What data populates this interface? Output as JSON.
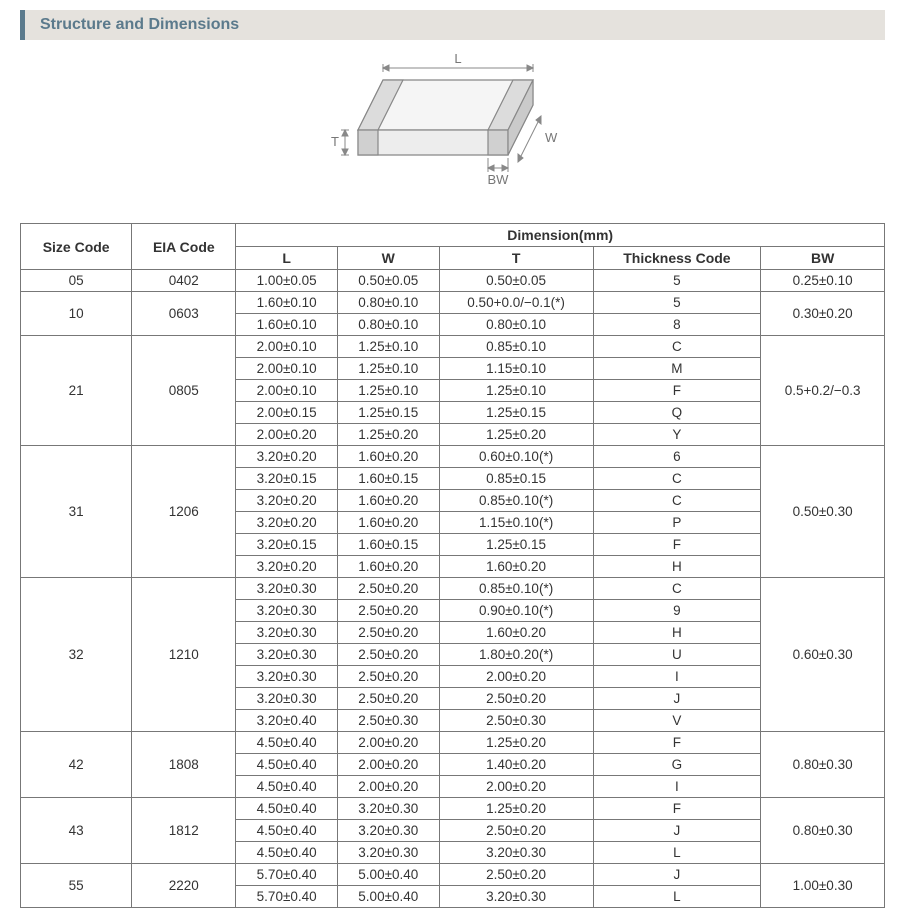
{
  "section_title": "Structure and Dimensions",
  "diagram": {
    "labels": {
      "L": "L",
      "W": "W",
      "T": "T",
      "BW": "BW"
    },
    "stroke": "#888888",
    "fill": "#eeeeee",
    "text_color": "#777777"
  },
  "table": {
    "headers": {
      "size_code": "Size Code",
      "eia_code": "EIA Code",
      "dimension_group": "Dimension(mm)",
      "L": "L",
      "W": "W",
      "T": "T",
      "thickness_code": "Thickness  Code",
      "BW": "BW"
    },
    "groups": [
      {
        "size_code": "05",
        "eia_code": "0402",
        "bw": "0.25±0.10",
        "rows": [
          {
            "L": "1.00±0.05",
            "W": "0.50±0.05",
            "T": "0.50±0.05",
            "tc": "5"
          }
        ]
      },
      {
        "size_code": "10",
        "eia_code": "0603",
        "bw": "0.30±0.20",
        "rows": [
          {
            "L": "1.60±0.10",
            "W": "0.80±0.10",
            "T": "0.50+0.0/−0.1(*)",
            "tc": "5"
          },
          {
            "L": "1.60±0.10",
            "W": "0.80±0.10",
            "T": "0.80±0.10",
            "tc": "8"
          }
        ]
      },
      {
        "size_code": "21",
        "eia_code": "0805",
        "bw": "0.5+0.2/−0.3",
        "rows": [
          {
            "L": "2.00±0.10",
            "W": "1.25±0.10",
            "T": "0.85±0.10",
            "tc": "C"
          },
          {
            "L": "2.00±0.10",
            "W": "1.25±0.10",
            "T": "1.15±0.10",
            "tc": "M"
          },
          {
            "L": "2.00±0.10",
            "W": "1.25±0.10",
            "T": "1.25±0.10",
            "tc": "F"
          },
          {
            "L": "2.00±0.15",
            "W": "1.25±0.15",
            "T": "1.25±0.15",
            "tc": "Q"
          },
          {
            "L": "2.00±0.20",
            "W": "1.25±0.20",
            "T": "1.25±0.20",
            "tc": "Y"
          }
        ]
      },
      {
        "size_code": "31",
        "eia_code": "1206",
        "bw": "0.50±0.30",
        "rows": [
          {
            "L": "3.20±0.20",
            "W": "1.60±0.20",
            "T": "0.60±0.10(*)",
            "tc": "6"
          },
          {
            "L": "3.20±0.15",
            "W": "1.60±0.15",
            "T": "0.85±0.15",
            "tc": "C"
          },
          {
            "L": "3.20±0.20",
            "W": "1.60±0.20",
            "T": "0.85±0.10(*)",
            "tc": "C"
          },
          {
            "L": "3.20±0.20",
            "W": "1.60±0.20",
            "T": "1.15±0.10(*)",
            "tc": "P"
          },
          {
            "L": "3.20±0.15",
            "W": "1.60±0.15",
            "T": "1.25±0.15",
            "tc": "F"
          },
          {
            "L": "3.20±0.20",
            "W": "1.60±0.20",
            "T": "1.60±0.20",
            "tc": "H"
          }
        ]
      },
      {
        "size_code": "32",
        "eia_code": "1210",
        "bw": "0.60±0.30",
        "rows": [
          {
            "L": "3.20±0.30",
            "W": "2.50±0.20",
            "T": "0.85±0.10(*)",
            "tc": "C"
          },
          {
            "L": "3.20±0.30",
            "W": "2.50±0.20",
            "T": "0.90±0.10(*)",
            "tc": "9"
          },
          {
            "L": "3.20±0.30",
            "W": "2.50±0.20",
            "T": "1.60±0.20",
            "tc": "H"
          },
          {
            "L": "3.20±0.30",
            "W": "2.50±0.20",
            "T": "1.80±0.20(*)",
            "tc": "U"
          },
          {
            "L": "3.20±0.30",
            "W": "2.50±0.20",
            "T": "2.00±0.20",
            "tc": "I"
          },
          {
            "L": "3.20±0.30",
            "W": "2.50±0.20",
            "T": "2.50±0.20",
            "tc": "J"
          },
          {
            "L": "3.20±0.40",
            "W": "2.50±0.30",
            "T": "2.50±0.30",
            "tc": "V"
          }
        ]
      },
      {
        "size_code": "42",
        "eia_code": "1808",
        "bw": "0.80±0.30",
        "rows": [
          {
            "L": "4.50±0.40",
            "W": "2.00±0.20",
            "T": "1.25±0.20",
            "tc": "F"
          },
          {
            "L": "4.50±0.40",
            "W": "2.00±0.20",
            "T": "1.40±0.20",
            "tc": "G"
          },
          {
            "L": "4.50±0.40",
            "W": "2.00±0.20",
            "T": "2.00±0.20",
            "tc": "I"
          }
        ]
      },
      {
        "size_code": "43",
        "eia_code": "1812",
        "bw": "0.80±0.30",
        "rows": [
          {
            "L": "4.50±0.40",
            "W": "3.20±0.30",
            "T": "1.25±0.20",
            "tc": "F"
          },
          {
            "L": "4.50±0.40",
            "W": "3.20±0.30",
            "T": "2.50±0.20",
            "tc": "J"
          },
          {
            "L": "4.50±0.40",
            "W": "3.20±0.30",
            "T": "3.20±0.30",
            "tc": "L"
          }
        ]
      },
      {
        "size_code": "55",
        "eia_code": "2220",
        "bw": "1.00±0.30",
        "rows": [
          {
            "L": "5.70±0.40",
            "W": "5.00±0.40",
            "T": "2.50±0.20",
            "tc": "J"
          },
          {
            "L": "5.70±0.40",
            "W": "5.00±0.40",
            "T": "3.20±0.30",
            "tc": "L"
          }
        ]
      }
    ]
  },
  "style": {
    "accent_color": "#5b7a8c",
    "header_bg": "#e5e2dd",
    "border_color": "#777777",
    "font_size_title": 16,
    "font_size_table": 14
  }
}
